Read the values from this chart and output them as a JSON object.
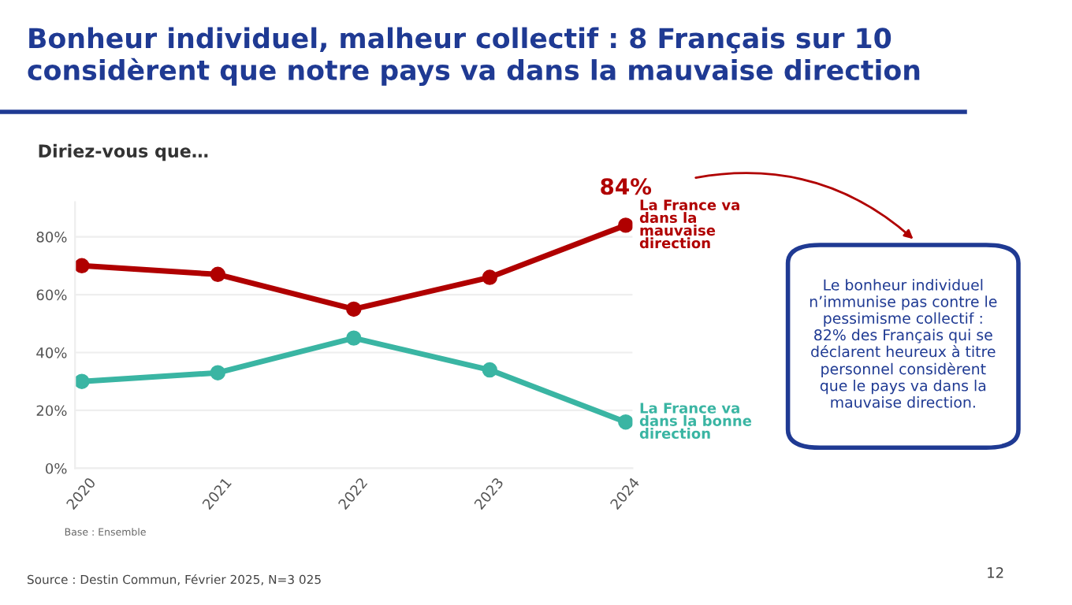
{
  "chart_data": {
    "type": "line",
    "title": "Bonheur individuel, malheur collectif : 8 Français sur 10 considèrent que notre pays va dans la mauvaise direction",
    "subtitle": "Diriez-vous que…",
    "categories": [
      "2020",
      "2021",
      "2022",
      "2023",
      "2024"
    ],
    "series": [
      {
        "name": "La France va dans la mauvaise direction",
        "color": "#b00000",
        "values": [
          70,
          67,
          55,
          66,
          84
        ]
      },
      {
        "name": "La France va dans la bonne direction",
        "color": "#3ab5a3",
        "values": [
          30,
          33,
          45,
          34,
          16
        ]
      }
    ],
    "ylim": [
      0,
      92
    ],
    "yticks": [
      {
        "value": 0,
        "label": "0%"
      },
      {
        "value": 20,
        "label": "20%"
      },
      {
        "value": 40,
        "label": "40%"
      },
      {
        "value": 60,
        "label": "60%"
      },
      {
        "value": 80,
        "label": "80%"
      }
    ],
    "grid": "y",
    "marker": "circle",
    "line_style": "solid",
    "legend": false,
    "annotations": [
      {
        "text": "84%",
        "x": "2024",
        "y": 84
      },
      "Le bonheur individuel n’immunise pas contre le pessimisme collectif : 82% des Français qui se déclarent heureux à titre personnel considèrent que le pays va dans la mauvaise direction.",
      "Base : Ensemble",
      "Source : Destin Commun, Février 2025, N=3 025",
      "12"
    ]
  }
}
